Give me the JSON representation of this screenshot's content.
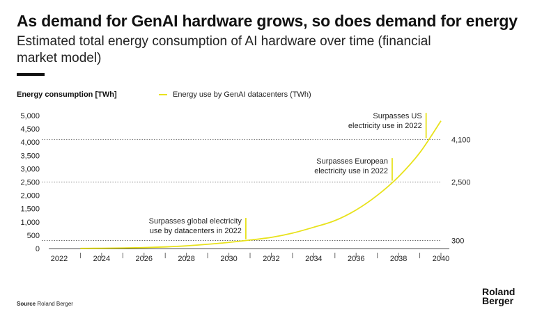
{
  "header": {
    "title": "As demand for GenAI hardware grows, so does demand for energy",
    "subtitle": "Estimated total energy consumption of AI hardware over time (financial market model)"
  },
  "chart_data": {
    "type": "line",
    "ylabel": "Energy consumption [TWh]",
    "legend_position": "top",
    "xlim": [
      2022,
      2040
    ],
    "ylim": [
      0,
      5000
    ],
    "x_ticks": [
      "2022",
      "2024",
      "2026",
      "2028",
      "2030",
      "2032",
      "2034",
      "2036",
      "2038",
      "2040"
    ],
    "y_ticks": [
      "0",
      "500",
      "1,000",
      "1,500",
      "2,000",
      "2,500",
      "3,000",
      "3,500",
      "4,000",
      "4,500",
      "5,000"
    ],
    "series": [
      {
        "name": "Energy use by GenAI datacenters (TWh)",
        "color": "#e8e21c",
        "x": [
          2023,
          2024,
          2025,
          2026,
          2027,
          2028,
          2029,
          2030,
          2031,
          2032,
          2033,
          2034,
          2035,
          2036,
          2037,
          2038,
          2039,
          2040
        ],
        "y": [
          5,
          10,
          20,
          35,
          60,
          100,
          160,
          230,
          320,
          420,
          580,
          800,
          1050,
          1450,
          2000,
          2700,
          3600,
          4800
        ]
      }
    ],
    "reference_lines": [
      {
        "value": 300,
        "label": "300"
      },
      {
        "value": 2500,
        "label": "2,500"
      },
      {
        "value": 4100,
        "label": "4,100"
      }
    ],
    "annotations": [
      {
        "x": 2030.8,
        "y": 300,
        "line_top": 1150,
        "lines": [
          "Surpasses global electricity",
          "use by datacenters in 2022"
        ]
      },
      {
        "x": 2037.7,
        "y": 2500,
        "line_top": 3400,
        "lines": [
          "Surpasses European",
          "electricity use in 2022"
        ]
      },
      {
        "x": 2039.3,
        "y": 4100,
        "line_top": 5100,
        "lines": [
          "Surpasses US",
          "electricity use in 2022"
        ]
      }
    ]
  },
  "footer": {
    "source_label": "Source",
    "source_text": "Roland Berger",
    "logo_line1": "Roland",
    "logo_line2": "Berger"
  },
  "colors": {
    "line": "#e8e21c",
    "axis": "#444444",
    "reference": "#555555"
  }
}
